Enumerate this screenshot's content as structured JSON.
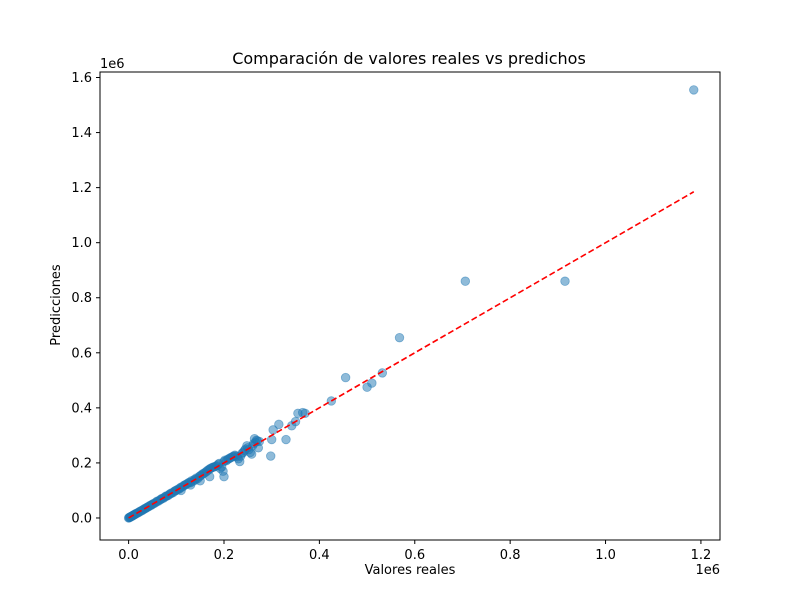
{
  "chart_data": {
    "type": "scatter",
    "title": "Comparación de valores reales vs predichos",
    "xlabel": "Valores reales",
    "ylabel": "Predicciones",
    "x_offset_label": "1e6",
    "y_offset_label": "1e6",
    "xlim": [
      -0.06,
      1.24
    ],
    "ylim": [
      -0.08,
      1.62
    ],
    "x_ticks": [
      {
        "value": 0.0,
        "label": "0.0"
      },
      {
        "value": 0.2,
        "label": "0.2"
      },
      {
        "value": 0.4,
        "label": "0.4"
      },
      {
        "value": 0.6,
        "label": "0.6"
      },
      {
        "value": 0.8,
        "label": "0.8"
      },
      {
        "value": 1.0,
        "label": "1.0"
      },
      {
        "value": 1.2,
        "label": "1.2"
      }
    ],
    "y_ticks": [
      {
        "value": 0.0,
        "label": "0.0"
      },
      {
        "value": 0.2,
        "label": "0.2"
      },
      {
        "value": 0.4,
        "label": "0.4"
      },
      {
        "value": 0.6,
        "label": "0.6"
      },
      {
        "value": 0.8,
        "label": "0.8"
      },
      {
        "value": 1.0,
        "label": "1.0"
      },
      {
        "value": 1.2,
        "label": "1.2"
      },
      {
        "value": 1.4,
        "label": "1.4"
      },
      {
        "value": 1.6,
        "label": "1.6"
      }
    ],
    "grid": false,
    "point_color": "#1f77b4",
    "point_alpha": 0.5,
    "reference_line": {
      "color": "#ff0000",
      "style": "dashed",
      "from": [
        0.0,
        0.0
      ],
      "to": [
        1.185,
        1.185
      ]
    },
    "series": [
      {
        "points": [
          [
            0.0,
            0.0
          ],
          [
            0.001,
            0.001
          ],
          [
            0.002,
            0.002
          ],
          [
            0.003,
            0.003
          ],
          [
            0.004,
            0.004
          ],
          [
            0.005,
            0.005
          ],
          [
            0.006,
            0.006
          ],
          [
            0.007,
            0.006
          ],
          [
            0.008,
            0.008
          ],
          [
            0.009,
            0.009
          ],
          [
            0.01,
            0.01
          ],
          [
            0.011,
            0.011
          ],
          [
            0.012,
            0.012
          ],
          [
            0.013,
            0.013
          ],
          [
            0.014,
            0.014
          ],
          [
            0.015,
            0.015
          ],
          [
            0.016,
            0.016
          ],
          [
            0.018,
            0.018
          ],
          [
            0.02,
            0.019
          ],
          [
            0.022,
            0.022
          ],
          [
            0.024,
            0.024
          ],
          [
            0.026,
            0.025
          ],
          [
            0.028,
            0.028
          ],
          [
            0.03,
            0.029
          ],
          [
            0.032,
            0.032
          ],
          [
            0.034,
            0.034
          ],
          [
            0.036,
            0.035
          ],
          [
            0.038,
            0.038
          ],
          [
            0.04,
            0.04
          ],
          [
            0.042,
            0.041
          ],
          [
            0.044,
            0.044
          ],
          [
            0.046,
            0.046
          ],
          [
            0.048,
            0.047
          ],
          [
            0.05,
            0.05
          ],
          [
            0.052,
            0.052
          ],
          [
            0.055,
            0.054
          ],
          [
            0.058,
            0.058
          ],
          [
            0.06,
            0.061
          ],
          [
            0.063,
            0.062
          ],
          [
            0.066,
            0.066
          ],
          [
            0.068,
            0.068
          ],
          [
            0.07,
            0.071
          ],
          [
            0.073,
            0.072
          ],
          [
            0.076,
            0.076
          ],
          [
            0.078,
            0.079
          ],
          [
            0.08,
            0.08
          ],
          [
            0.083,
            0.082
          ],
          [
            0.086,
            0.087
          ],
          [
            0.088,
            0.088
          ],
          [
            0.09,
            0.091
          ],
          [
            0.093,
            0.092
          ],
          [
            0.096,
            0.097
          ],
          [
            0.098,
            0.099
          ],
          [
            0.1,
            0.1
          ],
          [
            0.103,
            0.104
          ],
          [
            0.106,
            0.105
          ],
          [
            0.108,
            0.109
          ],
          [
            0.11,
            0.112
          ],
          [
            0.113,
            0.113
          ],
          [
            0.116,
            0.118
          ],
          [
            0.118,
            0.12
          ],
          [
            0.12,
            0.121
          ],
          [
            0.123,
            0.125
          ],
          [
            0.126,
            0.128
          ],
          [
            0.128,
            0.13
          ],
          [
            0.13,
            0.128
          ],
          [
            0.132,
            0.135
          ],
          [
            0.135,
            0.133
          ],
          [
            0.138,
            0.14
          ],
          [
            0.14,
            0.138
          ],
          [
            0.142,
            0.145
          ],
          [
            0.145,
            0.143
          ],
          [
            0.148,
            0.15
          ],
          [
            0.15,
            0.153
          ],
          [
            0.152,
            0.155
          ],
          [
            0.155,
            0.16
          ],
          [
            0.158,
            0.162
          ],
          [
            0.16,
            0.165
          ],
          [
            0.163,
            0.168
          ],
          [
            0.165,
            0.172
          ],
          [
            0.168,
            0.175
          ],
          [
            0.17,
            0.178
          ],
          [
            0.172,
            0.18
          ],
          [
            0.175,
            0.183
          ],
          [
            0.178,
            0.185
          ],
          [
            0.18,
            0.186
          ],
          [
            0.183,
            0.188
          ],
          [
            0.185,
            0.19
          ],
          [
            0.188,
            0.195
          ],
          [
            0.19,
            0.198
          ],
          [
            0.192,
            0.18
          ],
          [
            0.195,
            0.185
          ],
          [
            0.198,
            0.17
          ],
          [
            0.2,
            0.205
          ],
          [
            0.202,
            0.21
          ],
          [
            0.205,
            0.208
          ],
          [
            0.208,
            0.213
          ],
          [
            0.21,
            0.215
          ],
          [
            0.213,
            0.218
          ],
          [
            0.215,
            0.22
          ],
          [
            0.218,
            0.222
          ],
          [
            0.22,
            0.225
          ],
          [
            0.223,
            0.228
          ],
          [
            0.225,
            0.225
          ],
          [
            0.228,
            0.222
          ],
          [
            0.23,
            0.215
          ],
          [
            0.233,
            0.205
          ],
          [
            0.235,
            0.225
          ],
          [
            0.238,
            0.235
          ],
          [
            0.24,
            0.238
          ],
          [
            0.243,
            0.245
          ],
          [
            0.245,
            0.25
          ],
          [
            0.248,
            0.262
          ],
          [
            0.25,
            0.255
          ],
          [
            0.252,
            0.248
          ],
          [
            0.255,
            0.238
          ],
          [
            0.258,
            0.232
          ],
          [
            0.26,
            0.262
          ],
          [
            0.262,
            0.27
          ],
          [
            0.264,
            0.288
          ],
          [
            0.266,
            0.275
          ],
          [
            0.268,
            0.282
          ],
          [
            0.27,
            0.28
          ],
          [
            0.272,
            0.255
          ],
          [
            0.274,
            0.278
          ],
          [
            0.2,
            0.15
          ],
          [
            0.17,
            0.15
          ],
          [
            0.15,
            0.135
          ],
          [
            0.13,
            0.12
          ],
          [
            0.11,
            0.1
          ],
          [
            0.298,
            0.225
          ],
          [
            0.3,
            0.285
          ],
          [
            0.303,
            0.32
          ],
          [
            0.315,
            0.34
          ],
          [
            0.33,
            0.285
          ],
          [
            0.342,
            0.335
          ],
          [
            0.35,
            0.35
          ],
          [
            0.355,
            0.38
          ],
          [
            0.365,
            0.383
          ],
          [
            0.37,
            0.38
          ],
          [
            0.425,
            0.425
          ],
          [
            0.455,
            0.51
          ],
          [
            0.5,
            0.475
          ],
          [
            0.51,
            0.49
          ],
          [
            0.532,
            0.527
          ],
          [
            0.568,
            0.655
          ],
          [
            0.706,
            0.86
          ],
          [
            0.915,
            0.86
          ],
          [
            1.185,
            1.555
          ]
        ]
      }
    ]
  }
}
